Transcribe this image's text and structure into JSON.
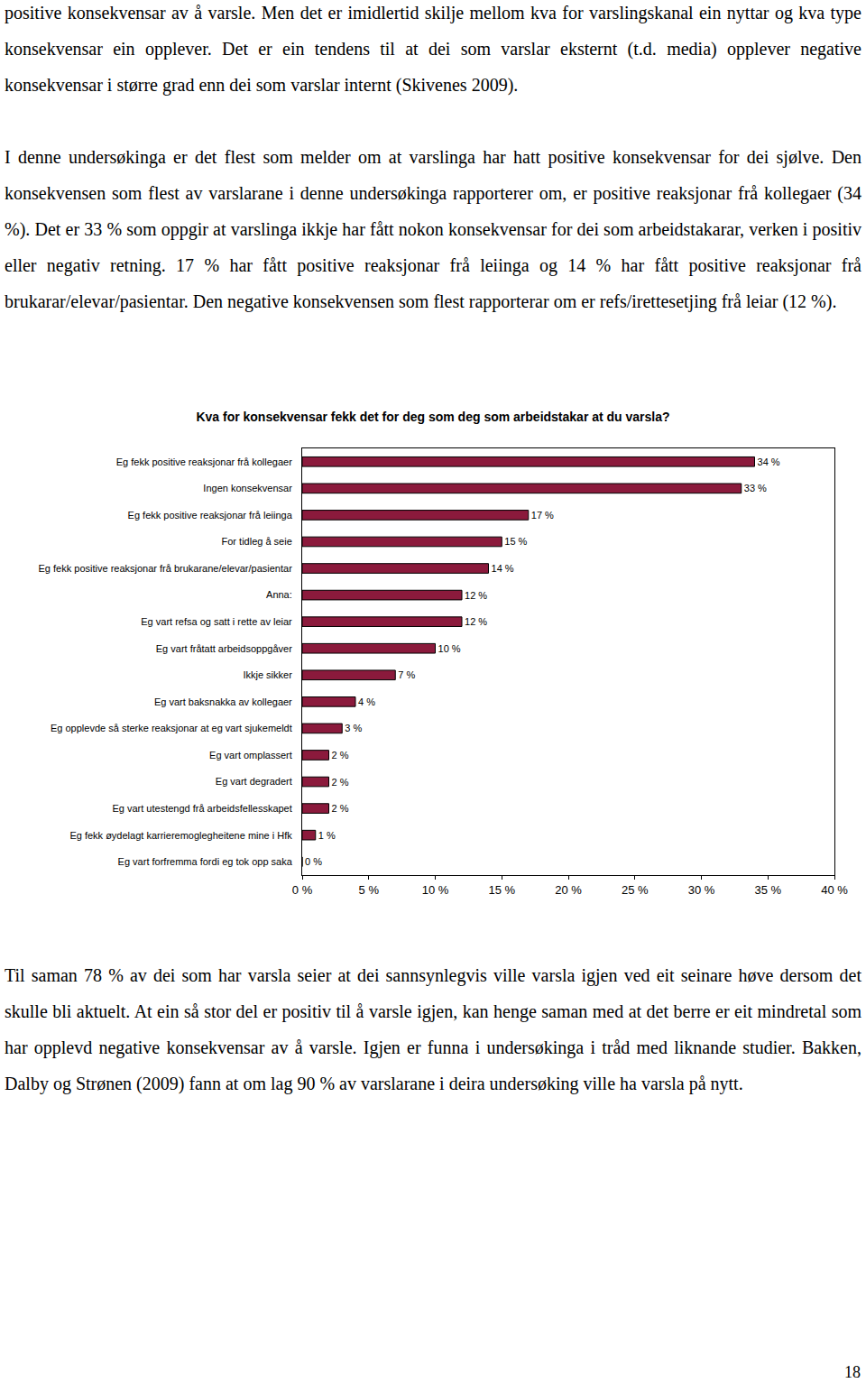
{
  "paragraphs_top": [
    "positive konsekvensar av å varsle. Men det er imidlertid skilje mellom kva for varslingskanal ein nyttar og kva type konsekvensar ein opplever. Det er ein tendens til at dei som varslar eksternt (t.d. media) opplever negative konsekvensar i større grad enn dei som varslar internt (Skivenes 2009).",
    "I denne undersøkinga er det flest som melder om at varslinga har hatt positive konsekvensar for dei sjølve. Den konsekvensen som flest av varslarane i denne undersøkinga rapporterer om, er positive reaksjonar frå kollegaer (34 %). Det er 33 % som oppgir at varslinga ikkje har fått nokon konsekvensar for dei som arbeidstakarar, verken i positiv eller negativ retning. 17 % har fått positive reaksjonar frå leiinga og 14 % har fått positive reaksjonar frå brukarar/elevar/pasientar. Den negative konsekvensen som flest rapporterar om er refs/irettesetjing frå leiar (12 %)."
  ],
  "chart_data": {
    "type": "bar",
    "orientation": "horizontal",
    "title": "Kva for konsekvensar fekk det for deg som deg som arbeidstakar at du varsla?",
    "categories": [
      "Eg fekk positive reaksjonar frå kollegaer",
      "Ingen konsekvensar",
      "Eg fekk positive reaksjonar frå leiinga",
      "For tidleg å seie",
      "Eg fekk positive reaksjonar frå brukarane/elevar/pasientar",
      "Anna:",
      "Eg vart refsa og satt i rette av leiar",
      "Eg vart fråtatt arbeidsoppgåver",
      "Ikkje sikker",
      "Eg vart baksnakka av kollegaer",
      "Eg opplevde så sterke reaksjonar at eg vart sjukemeldt",
      "Eg vart omplassert",
      "Eg vart degradert",
      "Eg vart utestengd frå arbeidsfellesskapet",
      "Eg fekk øydelagt karrieremoglegheitene mine i Hfk",
      "Eg vart forfremma fordi eg tok opp saka"
    ],
    "values": [
      34,
      33,
      17,
      15,
      14,
      12,
      12,
      10,
      7,
      4,
      3,
      2,
      2,
      2,
      1,
      0
    ],
    "value_labels": [
      "34 %",
      "33 %",
      "17 %",
      "15 %",
      "14 %",
      "12 %",
      "12 %",
      "10 %",
      "7 %",
      "4 %",
      "3 %",
      "2 %",
      "2 %",
      "2 %",
      "1 %",
      "0 %"
    ],
    "color": "#8b1a3c",
    "data_labels": true,
    "grid": false,
    "xlim": [
      0,
      40
    ],
    "xticks": [
      {
        "value": 0,
        "label": "0 %"
      },
      {
        "value": 5,
        "label": "5 %"
      },
      {
        "value": 10,
        "label": "10 %"
      },
      {
        "value": 15,
        "label": "15 %"
      },
      {
        "value": 20,
        "label": "20 %"
      },
      {
        "value": 25,
        "label": "25 %"
      },
      {
        "value": 30,
        "label": "30 %"
      },
      {
        "value": 35,
        "label": "35 %"
      },
      {
        "value": 40,
        "label": "40 %"
      }
    ]
  },
  "paragraphs_bottom": [
    "Til saman 78 % av dei som har varsla seier at dei sannsynlegvis ville varsla igjen ved eit seinare høve dersom det skulle bli aktuelt. At ein så stor del er positiv til å varsle igjen, kan henge saman med at det berre er eit mindretal som har opplevd negative konsekvensar av å varsle. Igjen er funna i undersøkinga i tråd med liknande studier. Bakken, Dalby og Strønen (2009) fann at om lag 90 % av varslarane i deira undersøking ville ha varsla på nytt."
  ],
  "page_number": "18"
}
